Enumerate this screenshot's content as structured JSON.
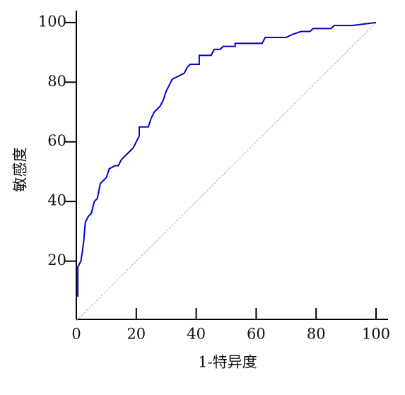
{
  "chart_data": {
    "type": "line",
    "xlabel": "1-特异度",
    "ylabel": "敏感度",
    "xlim": [
      0,
      104
    ],
    "ylim": [
      0,
      104
    ],
    "xticks": [
      0,
      20,
      40,
      60,
      80,
      100
    ],
    "yticks": [
      20,
      40,
      60,
      80,
      100
    ],
    "series": [
      {
        "color": "#0000c8",
        "x": [
          0.5,
          0.5,
          1.5,
          2,
          2.5,
          3,
          4,
          5,
          6,
          7,
          8,
          9,
          10,
          11,
          13,
          14,
          15,
          16,
          17,
          18,
          19,
          20,
          21,
          21,
          24,
          25,
          26,
          28,
          29,
          30,
          31,
          32,
          34,
          36,
          37,
          38,
          41,
          41,
          45,
          46,
          48,
          49,
          53,
          53,
          62,
          63,
          70,
          72,
          75,
          78,
          79,
          85,
          86,
          92,
          100
        ],
        "values": [
          8,
          18,
          20,
          23,
          27,
          33,
          35,
          36,
          40,
          41,
          46,
          47,
          48,
          51,
          52,
          52,
          54,
          55,
          56,
          57,
          58,
          60,
          62,
          65,
          65,
          68,
          70,
          72,
          74,
          77,
          79,
          81,
          82,
          83,
          85,
          86,
          86,
          89,
          89,
          91,
          91,
          92,
          92,
          93,
          93,
          95,
          95,
          96,
          97,
          97,
          98,
          98,
          99,
          99,
          100
        ]
      },
      {
        "color": "#d89aa8",
        "dashed": true,
        "x": [
          0,
          100
        ],
        "values": [
          0,
          100
        ]
      }
    ]
  }
}
